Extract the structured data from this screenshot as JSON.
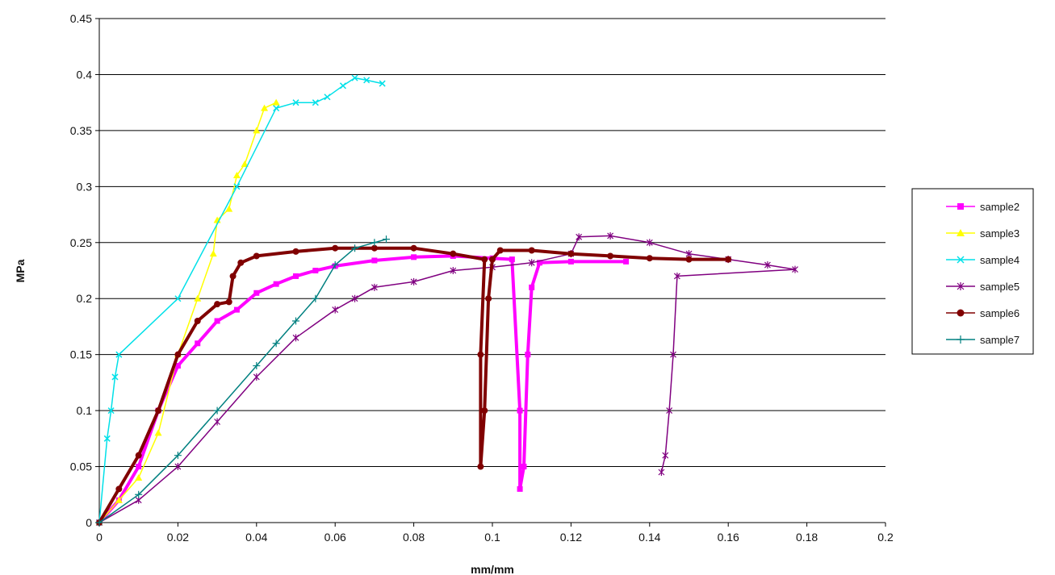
{
  "chart_data": {
    "type": "line",
    "title": "",
    "xlabel": "mm/mm",
    "ylabel": "MPa",
    "xlim": [
      0,
      0.2
    ],
    "ylim": [
      0,
      0.45
    ],
    "x_ticks": [
      "0",
      "0.02",
      "0.04",
      "0.06",
      "0.08",
      "0.1",
      "0.12",
      "0.14",
      "0.16",
      "0.18",
      "0.2"
    ],
    "y_ticks": [
      "0",
      "0.05",
      "0.1",
      "0.15",
      "0.2",
      "0.25",
      "0.3",
      "0.35",
      "0.4",
      "0.45"
    ],
    "grid": "horizontal",
    "legend_position": "right",
    "series": [
      {
        "name": "sample2",
        "color": "#ff00ff",
        "marker": "square",
        "points": [
          [
            0,
            0
          ],
          [
            0.005,
            0.02
          ],
          [
            0.01,
            0.05
          ],
          [
            0.015,
            0.1
          ],
          [
            0.02,
            0.14
          ],
          [
            0.025,
            0.16
          ],
          [
            0.03,
            0.18
          ],
          [
            0.035,
            0.19
          ],
          [
            0.04,
            0.205
          ],
          [
            0.045,
            0.213
          ],
          [
            0.05,
            0.22
          ],
          [
            0.055,
            0.225
          ],
          [
            0.06,
            0.229
          ],
          [
            0.07,
            0.234
          ],
          [
            0.08,
            0.237
          ],
          [
            0.09,
            0.238
          ],
          [
            0.1,
            0.236
          ],
          [
            0.105,
            0.235
          ],
          [
            0.107,
            0.1
          ],
          [
            0.107,
            0.03
          ],
          [
            0.108,
            0.05
          ],
          [
            0.109,
            0.15
          ],
          [
            0.11,
            0.21
          ],
          [
            0.112,
            0.232
          ],
          [
            0.12,
            0.233
          ],
          [
            0.134,
            0.233
          ]
        ]
      },
      {
        "name": "sample3",
        "color": "#ffff00",
        "marker": "triangle",
        "points": [
          [
            0,
            0
          ],
          [
            0.005,
            0.02
          ],
          [
            0.01,
            0.04
          ],
          [
            0.015,
            0.08
          ],
          [
            0.02,
            0.15
          ],
          [
            0.025,
            0.2
          ],
          [
            0.029,
            0.24
          ],
          [
            0.03,
            0.27
          ],
          [
            0.033,
            0.28
          ],
          [
            0.035,
            0.31
          ],
          [
            0.037,
            0.32
          ],
          [
            0.04,
            0.35
          ],
          [
            0.042,
            0.37
          ],
          [
            0.045,
            0.375
          ]
        ]
      },
      {
        "name": "sample4",
        "color": "#00e0e8",
        "marker": "cross",
        "points": [
          [
            0,
            0
          ],
          [
            0.002,
            0.075
          ],
          [
            0.003,
            0.1
          ],
          [
            0.004,
            0.13
          ],
          [
            0.005,
            0.15
          ],
          [
            0.02,
            0.2
          ],
          [
            0.035,
            0.3
          ],
          [
            0.045,
            0.37
          ],
          [
            0.05,
            0.375
          ],
          [
            0.055,
            0.375
          ],
          [
            0.058,
            0.38
          ],
          [
            0.062,
            0.39
          ],
          [
            0.065,
            0.397
          ],
          [
            0.068,
            0.395
          ],
          [
            0.072,
            0.392
          ]
        ]
      },
      {
        "name": "sample5",
        "color": "#800080",
        "marker": "star",
        "points": [
          [
            0,
            0
          ],
          [
            0.01,
            0.02
          ],
          [
            0.02,
            0.05
          ],
          [
            0.03,
            0.09
          ],
          [
            0.04,
            0.13
          ],
          [
            0.05,
            0.165
          ],
          [
            0.06,
            0.19
          ],
          [
            0.065,
            0.2
          ],
          [
            0.07,
            0.21
          ],
          [
            0.08,
            0.215
          ],
          [
            0.09,
            0.225
          ],
          [
            0.1,
            0.228
          ],
          [
            0.11,
            0.232
          ],
          [
            0.12,
            0.24
          ],
          [
            0.122,
            0.255
          ],
          [
            0.13,
            0.256
          ],
          [
            0.14,
            0.25
          ],
          [
            0.15,
            0.24
          ],
          [
            0.16,
            0.235
          ],
          [
            0.17,
            0.23
          ],
          [
            0.177,
            0.226
          ],
          [
            0.147,
            0.22
          ],
          [
            0.146,
            0.15
          ],
          [
            0.145,
            0.1
          ],
          [
            0.144,
            0.06
          ],
          [
            0.143,
            0.045
          ]
        ]
      },
      {
        "name": "sample6",
        "color": "#800000",
        "marker": "circle",
        "points": [
          [
            0,
            0
          ],
          [
            0.005,
            0.03
          ],
          [
            0.01,
            0.06
          ],
          [
            0.015,
            0.1
          ],
          [
            0.02,
            0.15
          ],
          [
            0.025,
            0.18
          ],
          [
            0.03,
            0.195
          ],
          [
            0.033,
            0.197
          ],
          [
            0.034,
            0.22
          ],
          [
            0.036,
            0.232
          ],
          [
            0.04,
            0.238
          ],
          [
            0.05,
            0.242
          ],
          [
            0.06,
            0.245
          ],
          [
            0.07,
            0.245
          ],
          [
            0.08,
            0.245
          ],
          [
            0.09,
            0.24
          ],
          [
            0.098,
            0.235
          ],
          [
            0.097,
            0.15
          ],
          [
            0.097,
            0.05
          ],
          [
            0.098,
            0.1
          ],
          [
            0.099,
            0.2
          ],
          [
            0.1,
            0.235
          ],
          [
            0.102,
            0.243
          ],
          [
            0.11,
            0.243
          ],
          [
            0.12,
            0.24
          ],
          [
            0.13,
            0.238
          ],
          [
            0.14,
            0.236
          ],
          [
            0.15,
            0.235
          ],
          [
            0.16,
            0.235
          ]
        ]
      },
      {
        "name": "sample7",
        "color": "#008080",
        "marker": "plus",
        "points": [
          [
            0,
            0
          ],
          [
            0.01,
            0.025
          ],
          [
            0.02,
            0.06
          ],
          [
            0.03,
            0.1
          ],
          [
            0.04,
            0.14
          ],
          [
            0.045,
            0.16
          ],
          [
            0.05,
            0.18
          ],
          [
            0.055,
            0.2
          ],
          [
            0.06,
            0.23
          ],
          [
            0.065,
            0.245
          ],
          [
            0.07,
            0.25
          ],
          [
            0.073,
            0.253
          ]
        ]
      }
    ]
  }
}
